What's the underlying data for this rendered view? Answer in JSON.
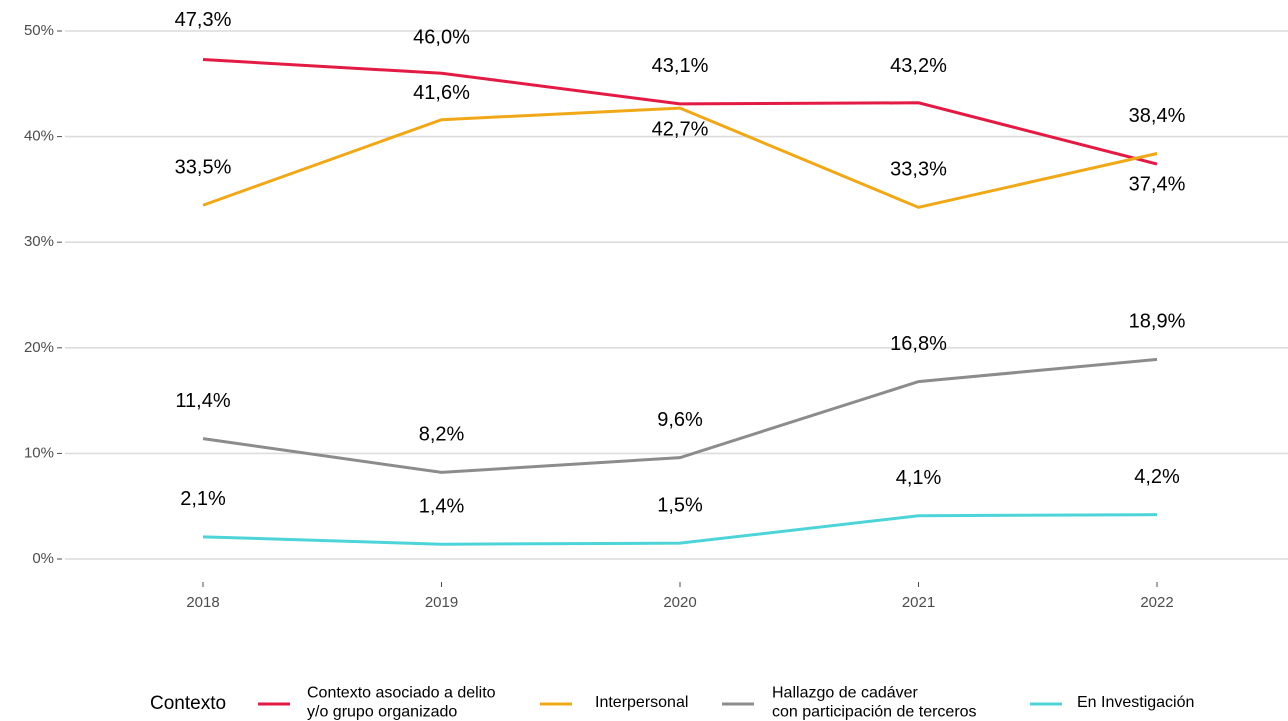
{
  "chart_data": {
    "type": "line",
    "categories": [
      "2018",
      "2019",
      "2020",
      "2021",
      "2022"
    ],
    "ylim": [
      0,
      50
    ],
    "yticks": [
      {
        "value": 0,
        "label": "0%"
      },
      {
        "value": 10,
        "label": "10%"
      },
      {
        "value": 20,
        "label": "20%"
      },
      {
        "value": 30,
        "label": "30%"
      },
      {
        "value": 40,
        "label": "40%"
      },
      {
        "value": 50,
        "label": "50%"
      }
    ],
    "grid": true,
    "legend_title": "Contexto",
    "legend_position": "bottom",
    "series": [
      {
        "name": "Contexto asociado a delito\ny/o grupo organizado",
        "color": "#e31a43",
        "values": [
          47.3,
          46.0,
          43.1,
          43.2,
          37.4
        ],
        "value_labels": [
          "47,3%",
          "46,0%",
          "43,1%",
          "43,2%",
          "37,4%"
        ]
      },
      {
        "name": "Interpersonal",
        "color": "#f0a818",
        "values": [
          33.5,
          41.6,
          42.7,
          33.3,
          38.4
        ],
        "value_labels": [
          "33,5%",
          "41,6%",
          "42,7%",
          "33,3%",
          "38,4%"
        ]
      },
      {
        "name": "Hallazgo de cadáver\ncon participación de terceros",
        "color": "#8c8c8c",
        "values": [
          11.4,
          8.2,
          9.6,
          16.8,
          18.9
        ],
        "value_labels": [
          "11,4%",
          "8,2%",
          "9,6%",
          "16,8%",
          "18,9%"
        ]
      },
      {
        "name": "En Investigación",
        "color": "#4dd4d8",
        "values": [
          2.1,
          1.4,
          1.5,
          4.1,
          4.2
        ],
        "value_labels": [
          "2,1%",
          "1,4%",
          "1,5%",
          "4,1%",
          "4,2%"
        ]
      }
    ]
  }
}
